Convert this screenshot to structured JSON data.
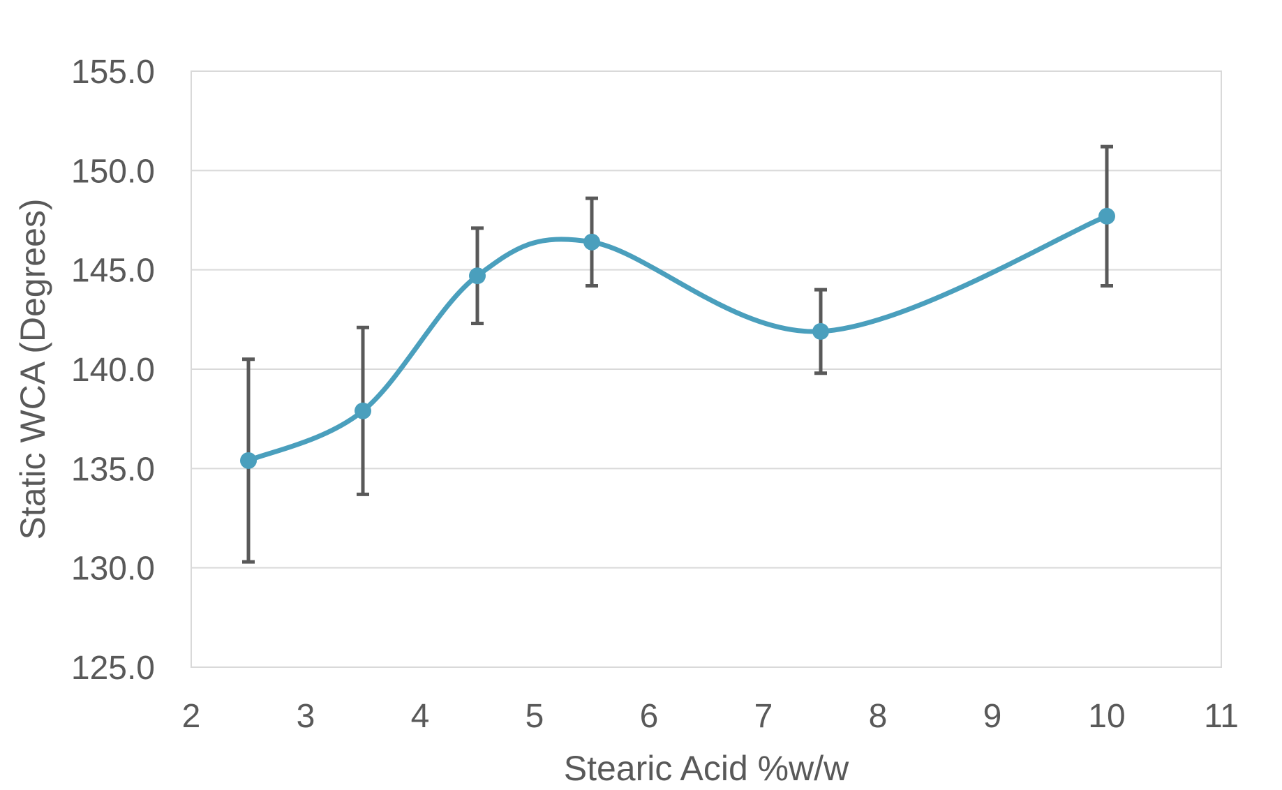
{
  "chart_data": {
    "type": "scatter",
    "title": "",
    "xlabel": "Stearic Acid %w/w",
    "ylabel": "Static WCA (Degrees)",
    "xlim": [
      2,
      11
    ],
    "ylim": [
      125,
      155
    ],
    "x_ticks": [
      "2",
      "3",
      "4",
      "5",
      "6",
      "7",
      "8",
      "9",
      "10",
      "11"
    ],
    "y_ticks": [
      "125.0",
      "130.0",
      "135.0",
      "140.0",
      "145.0",
      "150.0",
      "155.0"
    ],
    "grid": "horizontal",
    "legend": "none",
    "smooth_line": true,
    "series_color": "#4a9fbd",
    "error_bar_color": "#595959",
    "series": [
      {
        "x": [
          2.5,
          3.5,
          4.5,
          5.5,
          7.5,
          10
        ],
        "y": [
          135.4,
          137.9,
          144.7,
          146.4,
          141.9,
          147.7
        ],
        "error": [
          5.1,
          4.2,
          2.4,
          2.2,
          2.1,
          3.5
        ]
      }
    ]
  }
}
